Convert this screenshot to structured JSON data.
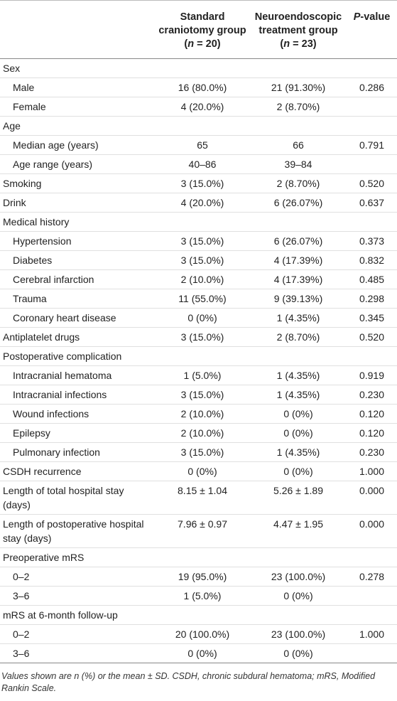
{
  "table": {
    "columns": [
      [
        {
          "text": "Standard craniotomy group ("
        },
        {
          "text": "n",
          "italic": true
        },
        {
          "text": " = 20)"
        }
      ],
      [
        {
          "text": "Neuroendoscopic treatment group ("
        },
        {
          "text": "n",
          "italic": true
        },
        {
          "text": " = 23)"
        }
      ],
      [
        {
          "text": "P",
          "italic": true
        },
        {
          "text": "-value"
        }
      ]
    ],
    "rows": [
      {
        "label": "Sex",
        "rows": [
          [
            "Male",
            "16 (80.0%)",
            "21 (91.30%)",
            "0.286"
          ],
          [
            "Female",
            "4 (20.0%)",
            "2 (8.70%)"
          ]
        ]
      },
      {
        "label": "Age",
        "rows": [
          [
            "Median age (years)",
            "65",
            "66",
            "0.791"
          ],
          [
            "Age range (years)",
            "40–86",
            "39–84"
          ]
        ]
      },
      {
        "label": "Smoking",
        "cells": [
          "3 (15.0%)",
          "2 (8.70%)",
          "0.520"
        ]
      },
      {
        "label": "Drink",
        "cells": [
          "4 (20.0%)",
          "6 (26.07%)",
          "0.637"
        ]
      },
      {
        "label": "Medical history",
        "rows": [
          [
            "Hypertension",
            "3 (15.0%)",
            "6 (26.07%)",
            "0.373"
          ],
          [
            "Diabetes",
            "3 (15.0%)",
            "4 (17.39%)",
            "0.832"
          ],
          [
            "Cerebral infarction",
            "2 (10.0%)",
            "4 (17.39%)",
            "0.485"
          ],
          [
            "Trauma",
            "11 (55.0%)",
            "9 (39.13%)",
            "0.298"
          ],
          [
            "Coronary heart disease",
            "0 (0%)",
            "1 (4.35%)",
            "0.345"
          ]
        ]
      },
      {
        "label": "Antiplatelet drugs",
        "cells": [
          "3 (15.0%)",
          "2 (8.70%)",
          "0.520"
        ]
      },
      {
        "label": "Postoperative complication",
        "rows": [
          [
            "Intracranial hematoma",
            "1 (5.0%)",
            "1 (4.35%)",
            "0.919"
          ],
          [
            "Intracranial infections",
            "3 (15.0%)",
            "1 (4.35%)",
            "0.230"
          ],
          [
            "Wound infections",
            "2 (10.0%)",
            "0 (0%)",
            "0.120"
          ],
          [
            "Epilepsy",
            "2 (10.0%)",
            "0 (0%)",
            "0.120"
          ],
          [
            "Pulmonary infection",
            "3 (15.0%)",
            "1 (4.35%)",
            "0.230"
          ]
        ]
      },
      {
        "label": "CSDH recurrence",
        "cells": [
          "0 (0%)",
          "0 (0%)",
          "1.000"
        ]
      },
      {
        "label": "Length of total hospital stay (days)",
        "cells": [
          "8.15 ± 1.04",
          "5.26 ± 1.89",
          "0.000"
        ]
      },
      {
        "label": "Length of postoperative hospital stay (days)",
        "cells": [
          "7.96 ± 0.97",
          "4.47 ± 1.95",
          "0.000"
        ]
      },
      {
        "label": "Preoperative mRS",
        "rows": [
          [
            "0–2",
            "19 (95.0%)",
            "23 (100.0%)",
            "0.278"
          ],
          [
            "3–6",
            "1 (5.0%)",
            "0 (0%)"
          ]
        ]
      },
      {
        "label": "mRS at 6-month follow-up",
        "rows": [
          [
            "0–2",
            "20 (100.0%)",
            "23 (100.0%)",
            "1.000"
          ],
          [
            "3–6",
            "0 (0%)",
            "0 (0%)"
          ]
        ]
      }
    ],
    "footnote": "Values shown are n (%) or the mean ± SD. CSDH, chronic subdural hematoma; mRS, Modified Rankin Scale."
  }
}
